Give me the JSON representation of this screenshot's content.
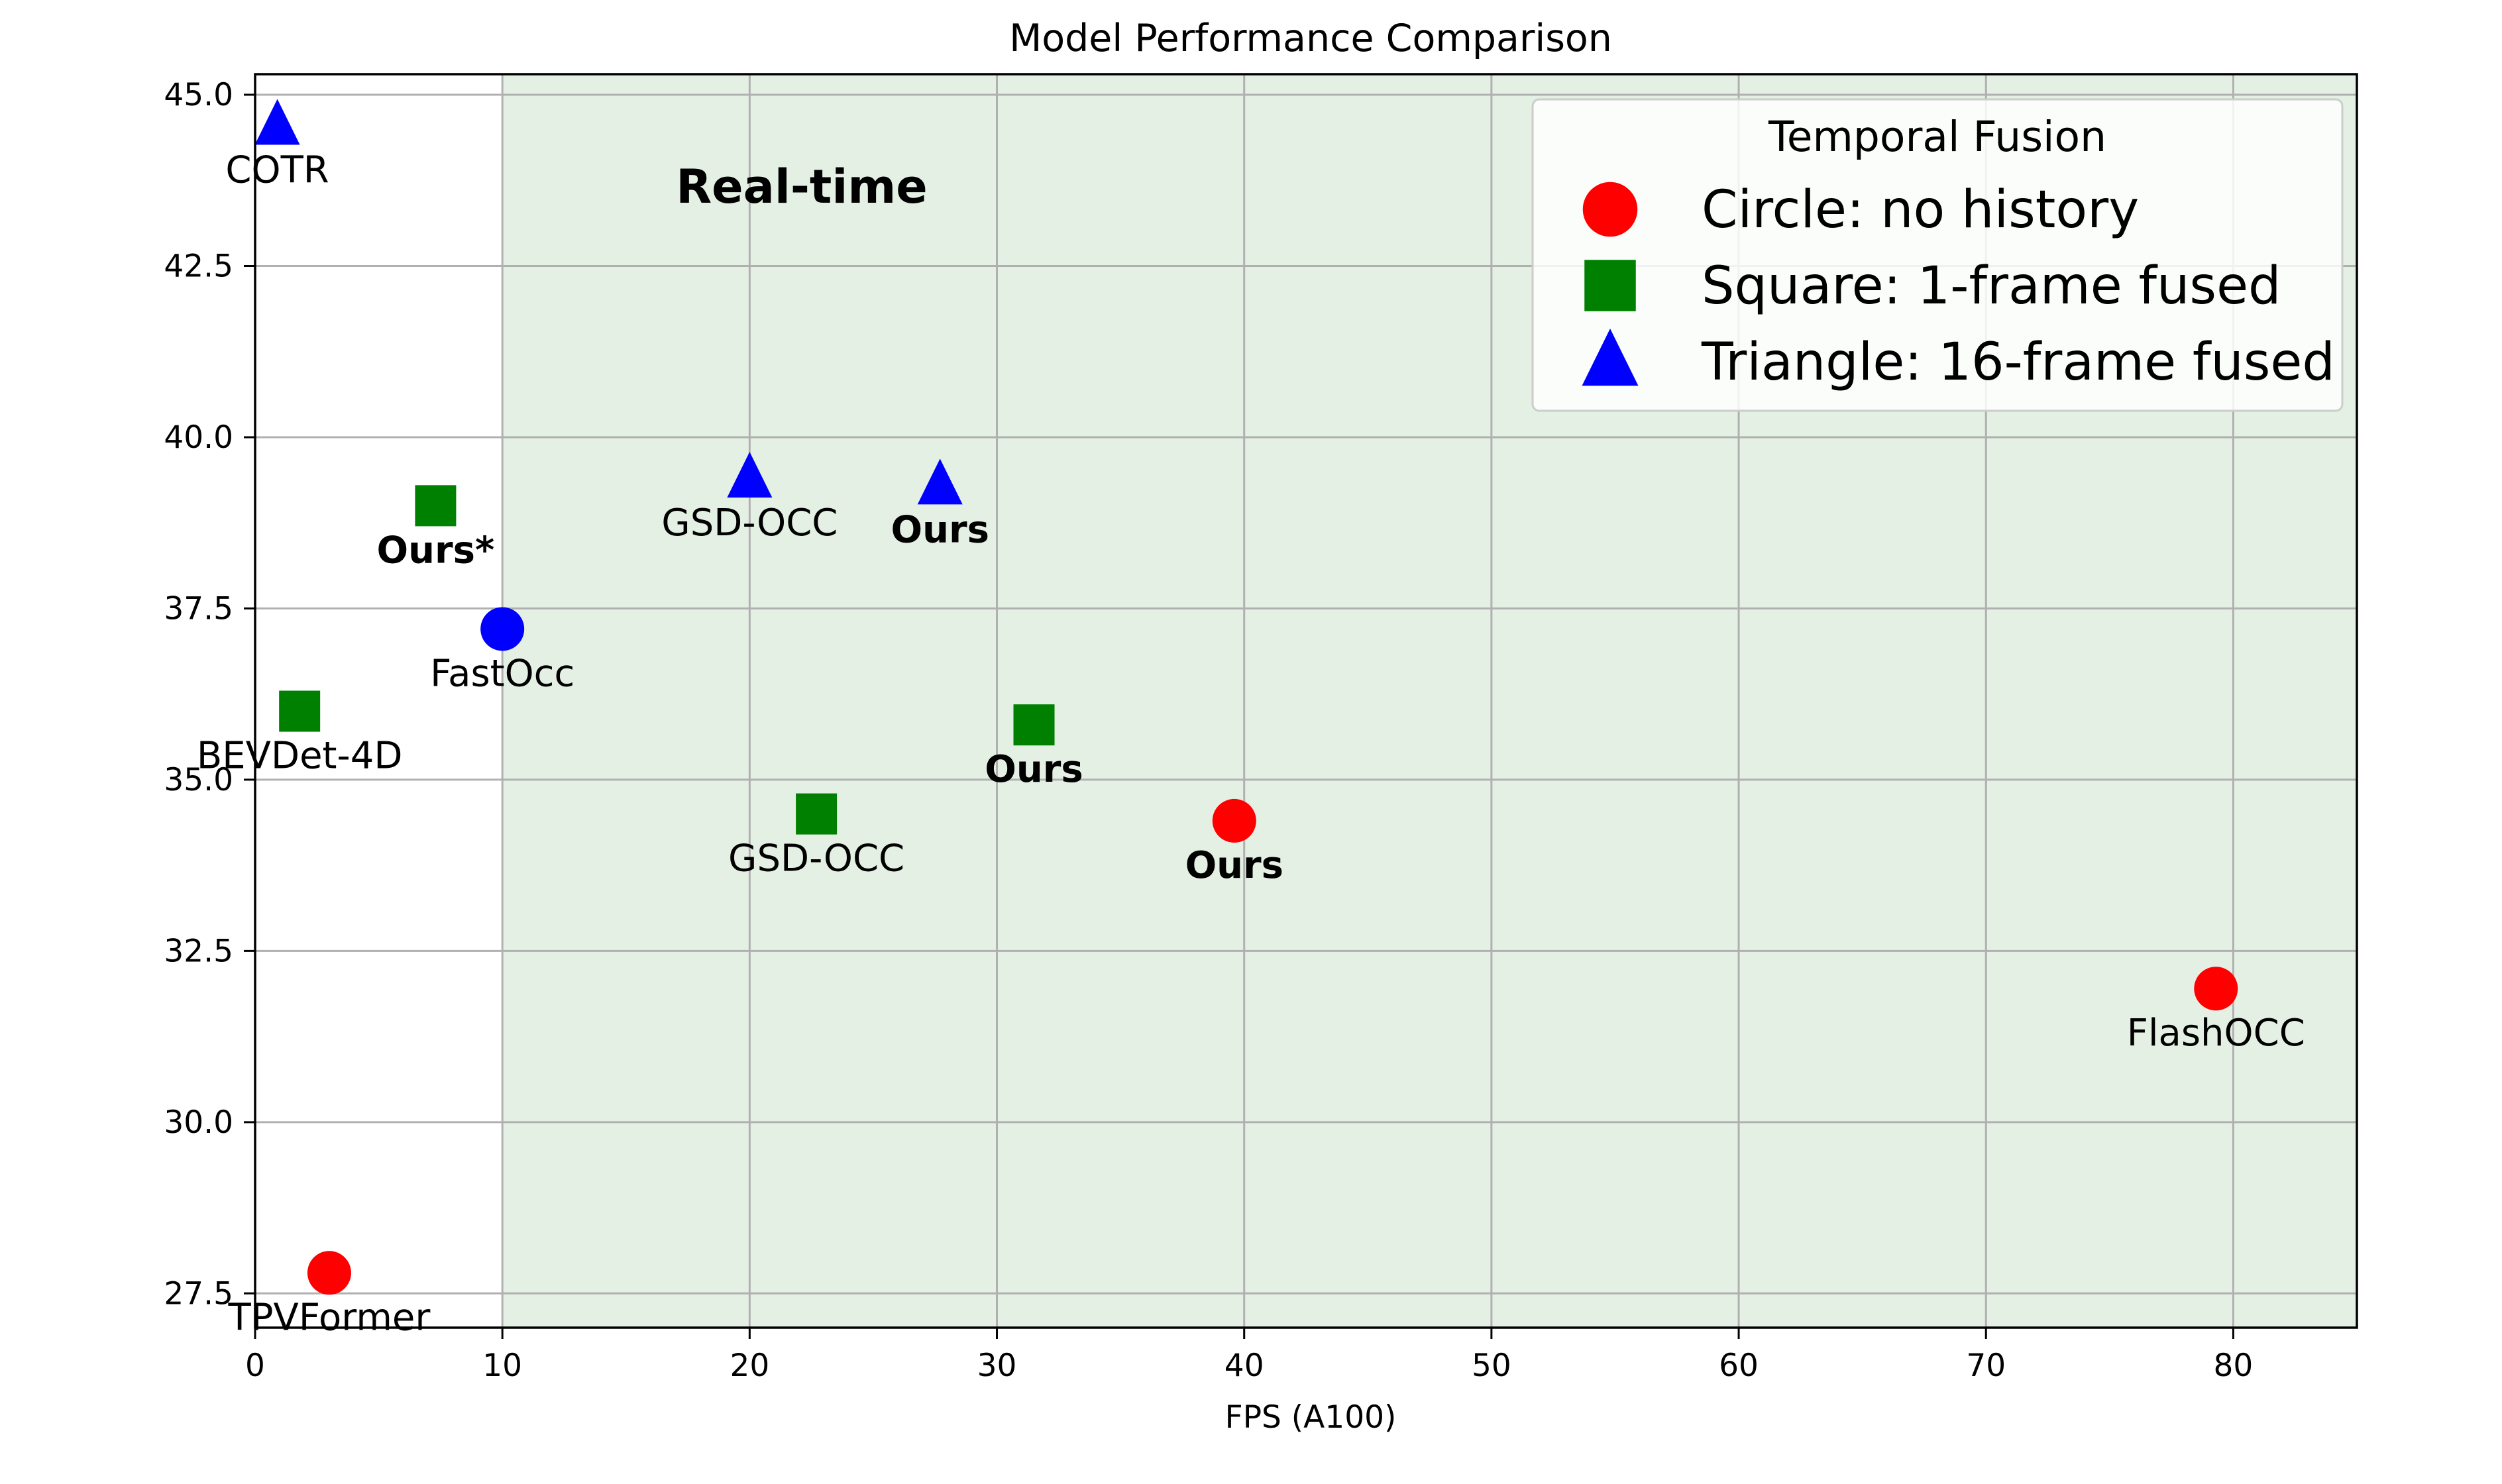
{
  "chart_data": {
    "type": "scatter",
    "title": "Model Performance Comparison",
    "xlabel": "FPS (A100)",
    "ylabel": "",
    "xlim": [
      0,
      85
    ],
    "ylim": [
      27,
      45.3
    ],
    "x_ticks": [
      "0",
      "10",
      "20",
      "30",
      "40",
      "50",
      "60",
      "70",
      "80"
    ],
    "y_ticks": [
      "27.5",
      "30.0",
      "32.5",
      "35.0",
      "37.5",
      "40.0",
      "42.5",
      "45.0"
    ],
    "grid": true,
    "realtime_region": {
      "label": "Real-time",
      "x_start": 10,
      "color": "#e5f0e5"
    },
    "legend": {
      "title": "Temporal Fusion",
      "position": "top-right",
      "entries": [
        {
          "shape": "circle",
          "color": "#ff0000",
          "label": "Circle: no history"
        },
        {
          "shape": "square",
          "color": "#008000",
          "label": "Square: 1-frame fused"
        },
        {
          "shape": "triangle",
          "color": "#0000ff",
          "label": "Triangle: 16-frame fused"
        }
      ]
    },
    "points": [
      {
        "name": "COTR",
        "x": 0.9,
        "y": 44.55,
        "shape": "triangle",
        "color": "#0000ff",
        "bold": false
      },
      {
        "name": "Ours*",
        "x": 7.3,
        "y": 39.0,
        "shape": "square",
        "color": "#008000",
        "bold": true
      },
      {
        "name": "BEVDet-4D",
        "x": 1.8,
        "y": 36.0,
        "shape": "square",
        "color": "#008000",
        "bold": false
      },
      {
        "name": "FastOcc",
        "x": 10.0,
        "y": 37.2,
        "shape": "circle",
        "color": "#0000ff",
        "bold": false
      },
      {
        "name": "TPVFormer",
        "x": 3.0,
        "y": 27.8,
        "shape": "circle",
        "color": "#ff0000",
        "bold": false
      },
      {
        "name": "GSD-OCC",
        "x": 20.0,
        "y": 39.4,
        "shape": "triangle",
        "color": "#0000ff",
        "bold": false
      },
      {
        "name": "Ours",
        "x": 27.7,
        "y": 39.3,
        "shape": "triangle",
        "color": "#0000ff",
        "bold": true
      },
      {
        "name": "GSD-OCC",
        "x": 22.7,
        "y": 34.5,
        "shape": "square",
        "color": "#008000",
        "bold": false
      },
      {
        "name": "Ours",
        "x": 31.5,
        "y": 35.8,
        "shape": "square",
        "color": "#008000",
        "bold": true
      },
      {
        "name": "Ours",
        "x": 39.6,
        "y": 34.4,
        "shape": "circle",
        "color": "#ff0000",
        "bold": true
      },
      {
        "name": "FlashOCC",
        "x": 79.3,
        "y": 31.95,
        "shape": "circle",
        "color": "#ff0000",
        "bold": false
      }
    ]
  }
}
